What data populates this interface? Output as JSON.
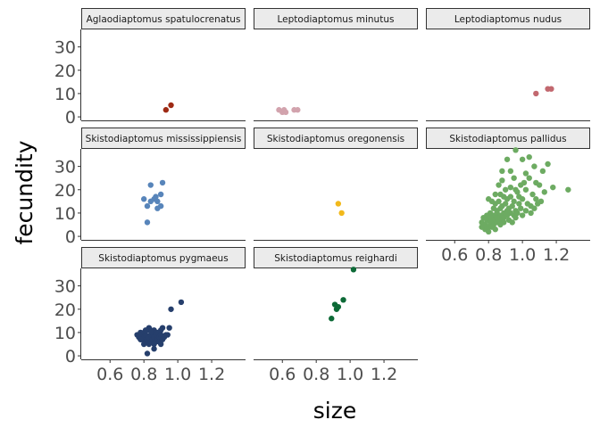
{
  "chart_data": {
    "type": "scatter",
    "xlabel": "size",
    "ylabel": "fecundity",
    "xlim": [
      0.43,
      1.4
    ],
    "ylim": [
      -1.5,
      37.5
    ],
    "xticks": [
      0.6,
      0.8,
      1.0,
      1.2
    ],
    "xtick_labels": [
      "0.6",
      "0.8",
      "1.0",
      "1.2"
    ],
    "yticks": [
      0,
      10,
      20,
      30
    ],
    "ytick_labels": [
      "0",
      "10",
      "20",
      "30"
    ],
    "grid": false,
    "legend": "none",
    "strip_fill": "#ebebeb",
    "panels": [
      {
        "title": "Aglaodiaptomus spatulocrenatus",
        "color": "#9e2a14",
        "points": [
          [
            0.93,
            3
          ],
          [
            0.96,
            5
          ]
        ]
      },
      {
        "title": "Leptodiaptomus minutus",
        "color": "#d2a3ad",
        "points": [
          [
            0.58,
            3
          ],
          [
            0.6,
            2
          ],
          [
            0.61,
            3
          ],
          [
            0.62,
            2
          ],
          [
            0.67,
            3
          ],
          [
            0.69,
            3
          ]
        ]
      },
      {
        "title": "Leptodiaptomus nudus",
        "color": "#c2686f",
        "points": [
          [
            1.08,
            10
          ],
          [
            1.15,
            12
          ],
          [
            1.17,
            12
          ]
        ]
      },
      {
        "title": "Skistodiaptomus mississippiensis",
        "color": "#5885ba",
        "points": [
          [
            0.8,
            16
          ],
          [
            0.82,
            6
          ],
          [
            0.82,
            13
          ],
          [
            0.84,
            15
          ],
          [
            0.84,
            22
          ],
          [
            0.86,
            16
          ],
          [
            0.87,
            17
          ],
          [
            0.88,
            12
          ],
          [
            0.88,
            15
          ],
          [
            0.9,
            13
          ],
          [
            0.9,
            18
          ],
          [
            0.91,
            23
          ]
        ]
      },
      {
        "title": "Skistodiaptomus oregonensis",
        "color": "#f2b91b",
        "points": [
          [
            0.93,
            14
          ],
          [
            0.95,
            10
          ]
        ]
      },
      {
        "title": "Skistodiaptomus pallidus",
        "color": "#6dab62",
        "points": [
          [
            0.96,
            37
          ],
          [
            1.04,
            34
          ],
          [
            1.07,
            30
          ],
          [
            1.0,
            33
          ],
          [
            0.91,
            33
          ],
          [
            1.15,
            31
          ],
          [
            0.93,
            28
          ],
          [
            1.02,
            27
          ],
          [
            1.12,
            28
          ],
          [
            1.04,
            25
          ],
          [
            1.18,
            21
          ],
          [
            1.27,
            20
          ],
          [
            0.88,
            24
          ],
          [
            0.95,
            25
          ],
          [
            0.99,
            22
          ],
          [
            1.08,
            23
          ],
          [
            1.1,
            22
          ],
          [
            1.13,
            19
          ],
          [
            0.86,
            22
          ],
          [
            0.9,
            20
          ],
          [
            0.93,
            21
          ],
          [
            0.97,
            19
          ],
          [
            1.02,
            20
          ],
          [
            1.06,
            18
          ],
          [
            1.08,
            16
          ],
          [
            1.09,
            14
          ],
          [
            0.84,
            18
          ],
          [
            0.87,
            18
          ],
          [
            0.89,
            17
          ],
          [
            0.91,
            16
          ],
          [
            0.93,
            17
          ],
          [
            0.95,
            15
          ],
          [
            0.98,
            17
          ],
          [
            1.0,
            16
          ],
          [
            1.03,
            14
          ],
          [
            1.05,
            13
          ],
          [
            0.8,
            16
          ],
          [
            0.82,
            15
          ],
          [
            0.84,
            14
          ],
          [
            0.86,
            15
          ],
          [
            0.88,
            13
          ],
          [
            0.9,
            14
          ],
          [
            0.92,
            12
          ],
          [
            0.94,
            13
          ],
          [
            0.96,
            11
          ],
          [
            0.99,
            12
          ],
          [
            0.83,
            12
          ],
          [
            0.85,
            11
          ],
          [
            0.87,
            12
          ],
          [
            0.89,
            10
          ],
          [
            0.91,
            11
          ],
          [
            0.93,
            10
          ],
          [
            0.95,
            9
          ],
          [
            0.97,
            10
          ],
          [
            0.81,
            10
          ],
          [
            0.83,
            9
          ],
          [
            0.85,
            10
          ],
          [
            0.87,
            9
          ],
          [
            0.89,
            8
          ],
          [
            0.91,
            9
          ],
          [
            0.79,
            9
          ],
          [
            0.81,
            8
          ],
          [
            0.83,
            7
          ],
          [
            0.85,
            8
          ],
          [
            0.87,
            7
          ],
          [
            0.89,
            6
          ],
          [
            0.77,
            8
          ],
          [
            0.79,
            7
          ],
          [
            0.81,
            6
          ],
          [
            0.83,
            5
          ],
          [
            0.85,
            6
          ],
          [
            0.87,
            5
          ],
          [
            0.76,
            6
          ],
          [
            0.78,
            5
          ],
          [
            0.8,
            4
          ],
          [
            0.82,
            4
          ],
          [
            0.84,
            3
          ],
          [
            0.78,
            3
          ],
          [
            0.8,
            2
          ],
          [
            0.76,
            4
          ],
          [
            0.92,
            7
          ],
          [
            0.94,
            6
          ],
          [
            0.96,
            8
          ],
          [
            1.0,
            9
          ],
          [
            1.02,
            11
          ],
          [
            1.05,
            10
          ],
          [
            1.07,
            12
          ],
          [
            1.11,
            15
          ],
          [
            0.98,
            14
          ],
          [
            0.96,
            20
          ],
          [
            1.01,
            23
          ],
          [
            0.88,
            28
          ]
        ]
      },
      {
        "title": "Skistodiaptomus pygmaeus",
        "color": "#263f6c",
        "points": [
          [
            1.02,
            23
          ],
          [
            0.96,
            20
          ],
          [
            0.95,
            12
          ],
          [
            0.94,
            9
          ],
          [
            0.91,
            12
          ],
          [
            0.9,
            11
          ],
          [
            0.86,
            11
          ],
          [
            0.82,
            1
          ],
          [
            0.83,
            12
          ],
          [
            0.76,
            9
          ],
          [
            0.77,
            8
          ],
          [
            0.78,
            10
          ],
          [
            0.79,
            9
          ],
          [
            0.79,
            7
          ],
          [
            0.8,
            8
          ],
          [
            0.8,
            10
          ],
          [
            0.81,
            6
          ],
          [
            0.81,
            9
          ],
          [
            0.82,
            7
          ],
          [
            0.82,
            11
          ],
          [
            0.83,
            8
          ],
          [
            0.83,
            5
          ],
          [
            0.84,
            9
          ],
          [
            0.84,
            6
          ],
          [
            0.85,
            7
          ],
          [
            0.85,
            10
          ],
          [
            0.86,
            8
          ],
          [
            0.86,
            5
          ],
          [
            0.87,
            9
          ],
          [
            0.87,
            6
          ],
          [
            0.88,
            7
          ],
          [
            0.88,
            10
          ],
          [
            0.89,
            8
          ],
          [
            0.89,
            6
          ],
          [
            0.9,
            9
          ],
          [
            0.91,
            7
          ],
          [
            0.84,
            11
          ],
          [
            0.8,
            5
          ],
          [
            0.78,
            7
          ],
          [
            0.92,
            8
          ],
          [
            0.86,
            3
          ],
          [
            0.93,
            9
          ],
          [
            0.81,
            11
          ],
          [
            0.9,
            5
          ]
        ]
      },
      {
        "title": "Skistodiaptomus reighardi",
        "color": "#0d6a37",
        "points": [
          [
            1.02,
            37
          ],
          [
            0.96,
            24
          ],
          [
            0.91,
            22
          ],
          [
            0.93,
            21
          ],
          [
            0.92,
            20
          ],
          [
            0.89,
            16
          ]
        ]
      }
    ]
  }
}
